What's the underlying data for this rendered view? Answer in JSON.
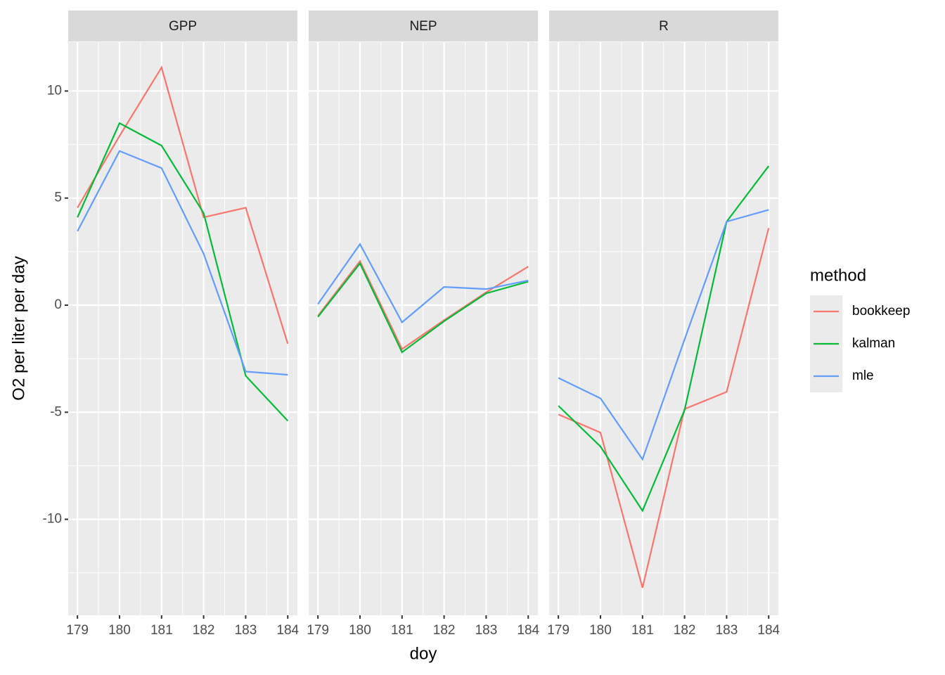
{
  "chart_data": [
    {
      "type": "line",
      "title": "GPP",
      "x": [
        179,
        180,
        181,
        182,
        183,
        184
      ],
      "series": [
        {
          "name": "bookkeep",
          "color": "#F8766D",
          "values": [
            4.55,
            7.9,
            11.1,
            4.1,
            4.55,
            -1.8
          ]
        },
        {
          "name": "kalman",
          "color": "#00BA38",
          "values": [
            4.1,
            8.5,
            7.45,
            4.3,
            -3.3,
            -5.4
          ]
        },
        {
          "name": "mle",
          "color": "#619CFF",
          "values": [
            3.45,
            7.2,
            6.4,
            2.4,
            -3.1,
            -3.25
          ]
        }
      ],
      "xlim": [
        178.78,
        184.23
      ],
      "xticks": [
        179,
        180,
        181,
        182,
        183,
        184
      ],
      "xminor": [
        179.5,
        180.5,
        181.5,
        182.5,
        183.5
      ],
      "ylim": [
        -14.48,
        12.28
      ],
      "yticks": [
        -10,
        -5,
        0,
        5,
        10
      ],
      "yminor": [
        -12.5,
        -7.5,
        -2.5,
        2.5,
        7.5
      ],
      "grid": true
    },
    {
      "type": "line",
      "title": "NEP",
      "x": [
        179,
        180,
        181,
        182,
        183,
        184
      ],
      "series": [
        {
          "name": "bookkeep",
          "color": "#F8766D",
          "values": [
            -0.5,
            2.05,
            -2.05,
            -0.7,
            0.6,
            1.8
          ]
        },
        {
          "name": "kalman",
          "color": "#00BA38",
          "values": [
            -0.55,
            1.95,
            -2.2,
            -0.75,
            0.55,
            1.1
          ]
        },
        {
          "name": "mle",
          "color": "#619CFF",
          "values": [
            0.05,
            2.85,
            -0.8,
            0.85,
            0.75,
            1.15
          ]
        }
      ],
      "xlim": [
        178.78,
        184.23
      ],
      "xticks": [
        179,
        180,
        181,
        182,
        183,
        184
      ],
      "xminor": [
        179.5,
        180.5,
        181.5,
        182.5,
        183.5
      ],
      "ylim": [
        -14.48,
        12.28
      ],
      "yticks": [
        -10,
        -5,
        0,
        5,
        10
      ],
      "yminor": [
        -12.5,
        -7.5,
        -2.5,
        2.5,
        7.5
      ],
      "grid": true
    },
    {
      "type": "line",
      "title": "R",
      "x": [
        179,
        180,
        181,
        182,
        183,
        184
      ],
      "series": [
        {
          "name": "bookkeep",
          "color": "#F8766D",
          "values": [
            -5.1,
            -5.95,
            -13.2,
            -4.85,
            -4.05,
            3.6
          ]
        },
        {
          "name": "kalman",
          "color": "#00BA38",
          "values": [
            -4.7,
            -6.6,
            -9.6,
            -4.9,
            3.9,
            6.5
          ]
        },
        {
          "name": "mle",
          "color": "#619CFF",
          "values": [
            -3.4,
            -4.35,
            -7.2,
            -1.6,
            3.9,
            4.45
          ]
        }
      ],
      "xlim": [
        178.78,
        184.23
      ],
      "xticks": [
        179,
        180,
        181,
        182,
        183,
        184
      ],
      "xminor": [
        179.5,
        180.5,
        181.5,
        182.5,
        183.5
      ],
      "ylim": [
        -14.48,
        12.28
      ],
      "yticks": [
        -10,
        -5,
        0,
        5,
        10
      ],
      "yminor": [
        -12.5,
        -7.5,
        -2.5,
        2.5,
        7.5
      ],
      "grid": true
    }
  ],
  "xlabel": "doy",
  "ylabel": "O2 per liter per day",
  "legend_title": "method"
}
